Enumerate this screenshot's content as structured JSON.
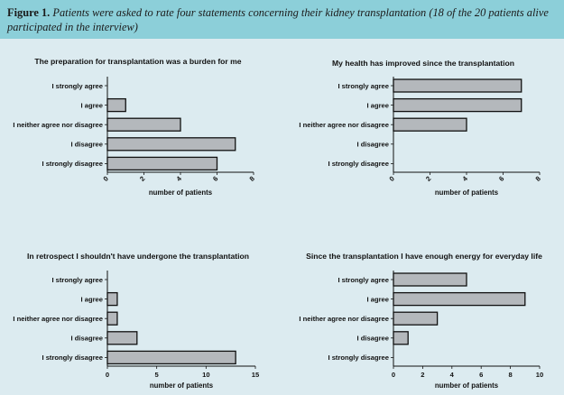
{
  "caption": {
    "label": "Figure 1.",
    "text": "Patients were asked to rate four statements concerning their kidney transplantation (18 of the 20 patients alive participated in the interview)"
  },
  "colors": {
    "background": "#dcebf0",
    "caption_band": "#8ccfd9",
    "bar_fill": "#b4b8bc",
    "bar_stroke": "#111111"
  },
  "chart_data": [
    {
      "type": "bar",
      "orientation": "horizontal",
      "title": "The preparation for transplantation was a burden for me",
      "categories": [
        "I strongly agree",
        "I agree",
        "I neither agree nor disagree",
        "I disagree",
        "I strongly disagree"
      ],
      "values": [
        0,
        1,
        4,
        7,
        6
      ],
      "xlabel": "number of patients",
      "xlim": [
        0,
        8
      ],
      "xticks": [
        "0",
        "2",
        "4",
        "6",
        "8"
      ],
      "tick_rotation": "rotated"
    },
    {
      "type": "bar",
      "orientation": "horizontal",
      "title": "My health has improved since the transplantation",
      "categories": [
        "I strongly agree",
        "I agree",
        "I neither agree nor disagree",
        "I disagree",
        "I strongly disagree"
      ],
      "values": [
        7,
        7,
        4,
        0,
        0
      ],
      "xlabel": "number of patients",
      "xlim": [
        0,
        8
      ],
      "xticks": [
        "0",
        "2",
        "4",
        "6",
        "8"
      ],
      "tick_rotation": "rotated"
    },
    {
      "type": "bar",
      "orientation": "horizontal",
      "title": "In retrospect I shouldn't have undergone the transplantation",
      "categories": [
        "I strongly agree",
        "I agree",
        "I neither agree nor disagree",
        "I disagree",
        "I strongly disagree"
      ],
      "values": [
        0,
        1,
        1,
        3,
        13
      ],
      "xlabel": "number of patients",
      "xlim": [
        0,
        15
      ],
      "xticks": [
        "0",
        "5",
        "10",
        "15"
      ],
      "tick_rotation": "none"
    },
    {
      "type": "bar",
      "orientation": "horizontal",
      "title": "Since the transplantation I have enough energy for everyday life",
      "categories": [
        "I strongly agree",
        "I agree",
        "I neither agree nor disagree",
        "I disagree",
        "I strongly disagree"
      ],
      "values": [
        5,
        9,
        3,
        1,
        0
      ],
      "xlabel": "number of patients",
      "xlim": [
        0,
        10
      ],
      "xticks": [
        "0",
        "2",
        "4",
        "6",
        "8",
        "10"
      ],
      "tick_rotation": "none"
    }
  ]
}
